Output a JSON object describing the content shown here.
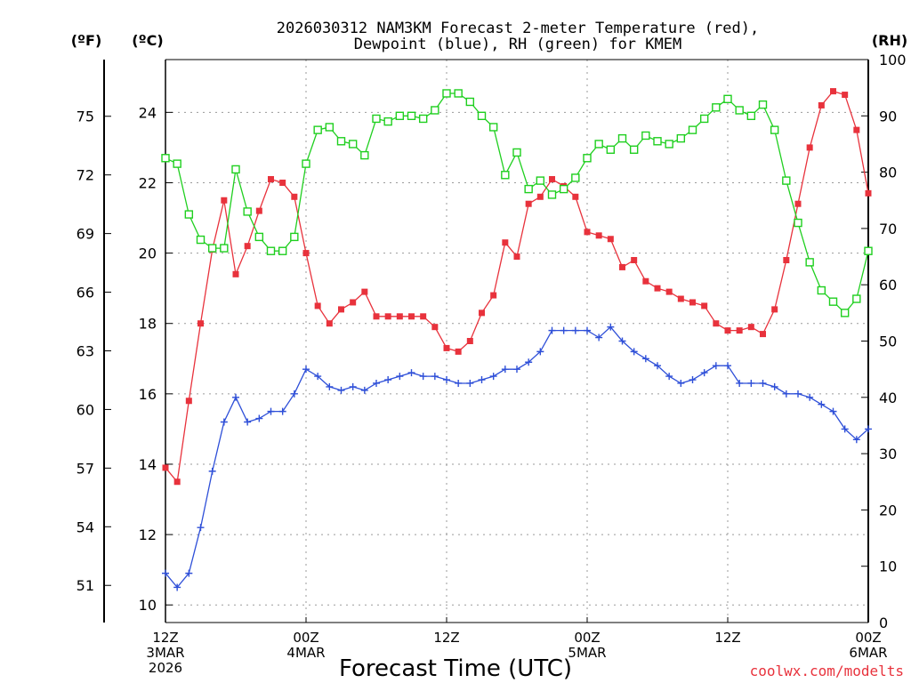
{
  "chart_data": {
    "type": "line",
    "title_line1": "2026030312 NAM3KM Forecast 2-meter Temperature (red),",
    "title_line2": "Dewpoint (blue), RH (green) for KMEM",
    "xlabel": "Forecast Time (UTC)",
    "watermark": "coolwx.com/modelts",
    "unit_f": "(ºF)",
    "unit_c": "(ºC)",
    "unit_rh": "(RH)",
    "x_range": [
      0,
      60
    ],
    "y_celsius_range": [
      9.5,
      25.5
    ],
    "y_rh_range": [
      0,
      100
    ],
    "grid": true,
    "x_ticks": [
      {
        "x": 0,
        "lines": [
          "12Z",
          "3MAR",
          "2026"
        ]
      },
      {
        "x": 12,
        "lines": [
          "00Z",
          "4MAR"
        ]
      },
      {
        "x": 24,
        "lines": [
          "12Z"
        ]
      },
      {
        "x": 36,
        "lines": [
          "00Z",
          "5MAR"
        ]
      },
      {
        "x": 48,
        "lines": [
          "12Z"
        ]
      },
      {
        "x": 60,
        "lines": [
          "00Z",
          "6MAR"
        ]
      }
    ],
    "y_ticks_c": [
      10,
      12,
      14,
      16,
      18,
      20,
      22,
      24
    ],
    "y_ticks_f": [
      51,
      54,
      57,
      60,
      63,
      66,
      69,
      72,
      75
    ],
    "y_ticks_rh": [
      0,
      10,
      20,
      30,
      40,
      50,
      60,
      70,
      80,
      90,
      100
    ],
    "series": [
      {
        "key": "temperature",
        "color": "#e8323c",
        "marker": "square-filled",
        "x": [
          0,
          1,
          2,
          3,
          4,
          5,
          6,
          7,
          8,
          9,
          10,
          11,
          12,
          13,
          14,
          15,
          16,
          17,
          18,
          19,
          20,
          21,
          22,
          23,
          24,
          25,
          26,
          27,
          28,
          29,
          30,
          31,
          32,
          33,
          34,
          35,
          36,
          37,
          38,
          39,
          40,
          41,
          42,
          43,
          44,
          45,
          46,
          47,
          48,
          49,
          50,
          51,
          52,
          53,
          54,
          55,
          56,
          57,
          58,
          59,
          60
        ],
        "values": [
          13.9,
          13.5,
          15.8,
          18.0,
          20.1,
          21.5,
          19.4,
          20.2,
          21.2,
          22.1,
          22.0,
          21.6,
          20.0,
          18.5,
          18.0,
          18.4,
          18.6,
          18.9,
          18.2,
          18.2,
          18.2,
          18.2,
          18.2,
          17.9,
          17.3,
          17.2,
          17.5,
          18.3,
          18.8,
          20.3,
          19.9,
          21.4,
          21.6,
          22.1,
          21.9,
          21.6,
          20.6,
          20.5,
          20.4,
          19.6,
          19.8,
          19.2,
          19.0,
          18.9,
          18.7,
          18.6,
          18.5,
          18.0,
          17.8,
          17.8,
          17.9,
          17.7,
          18.4,
          19.8,
          21.4,
          23.0,
          24.2,
          24.6,
          24.5,
          23.5,
          21.7
        ]
      },
      {
        "key": "dewpoint",
        "color": "#2e4fd8",
        "marker": "plus",
        "x": [
          0,
          1,
          2,
          3,
          4,
          5,
          6,
          7,
          8,
          9,
          10,
          11,
          12,
          13,
          14,
          15,
          16,
          17,
          18,
          19,
          20,
          21,
          22,
          23,
          24,
          25,
          26,
          27,
          28,
          29,
          30,
          31,
          32,
          33,
          34,
          35,
          36,
          37,
          38,
          39,
          40,
          41,
          42,
          43,
          44,
          45,
          46,
          47,
          48,
          49,
          50,
          51,
          52,
          53,
          54,
          55,
          56,
          57,
          58,
          59,
          60
        ],
        "values": [
          10.9,
          10.5,
          10.9,
          12.2,
          13.8,
          15.2,
          15.9,
          15.2,
          15.3,
          15.5,
          15.5,
          16.0,
          16.7,
          16.5,
          16.2,
          16.1,
          16.2,
          16.1,
          16.3,
          16.4,
          16.5,
          16.6,
          16.5,
          16.5,
          16.4,
          16.3,
          16.3,
          16.4,
          16.5,
          16.7,
          16.7,
          16.9,
          17.2,
          17.8,
          17.8,
          17.8,
          17.8,
          17.6,
          17.9,
          17.5,
          17.2,
          17.0,
          16.8,
          16.5,
          16.3,
          16.4,
          16.6,
          16.8,
          16.8,
          16.3,
          16.3,
          16.3,
          16.2,
          16.0,
          16.0,
          15.9,
          15.7,
          15.5,
          15.0,
          14.7,
          15.0
        ]
      },
      {
        "key": "rh",
        "color": "#1fcf1f",
        "marker": "square-open",
        "x": [
          0,
          1,
          2,
          3,
          4,
          5,
          6,
          7,
          8,
          9,
          10,
          11,
          12,
          13,
          14,
          15,
          16,
          17,
          18,
          19,
          20,
          21,
          22,
          23,
          24,
          25,
          26,
          27,
          28,
          29,
          30,
          31,
          32,
          33,
          34,
          35,
          36,
          37,
          38,
          39,
          40,
          41,
          42,
          43,
          44,
          45,
          46,
          47,
          48,
          49,
          50,
          51,
          52,
          53,
          54,
          55,
          56,
          57,
          58,
          59,
          60
        ],
        "values": [
          82.5,
          81.5,
          72.5,
          68.0,
          66.5,
          66.5,
          80.5,
          73.0,
          68.5,
          66.0,
          66.0,
          68.5,
          81.5,
          87.5,
          88.0,
          85.5,
          85.0,
          83.0,
          89.5,
          89.0,
          90.0,
          90.0,
          89.5,
          91.0,
          94.0,
          94.0,
          92.5,
          90.0,
          88.0,
          79.5,
          83.5,
          77.0,
          78.5,
          76.0,
          77.0,
          79.0,
          82.5,
          85.0,
          84.0,
          86.0,
          84.0,
          86.5,
          85.5,
          85.0,
          86.0,
          87.5,
          89.5,
          91.5,
          93.0,
          91.0,
          90.0,
          92.0,
          87.5,
          78.5,
          71.0,
          64.0,
          59.0,
          57.0,
          55.0,
          57.5,
          66.0
        ]
      }
    ]
  }
}
